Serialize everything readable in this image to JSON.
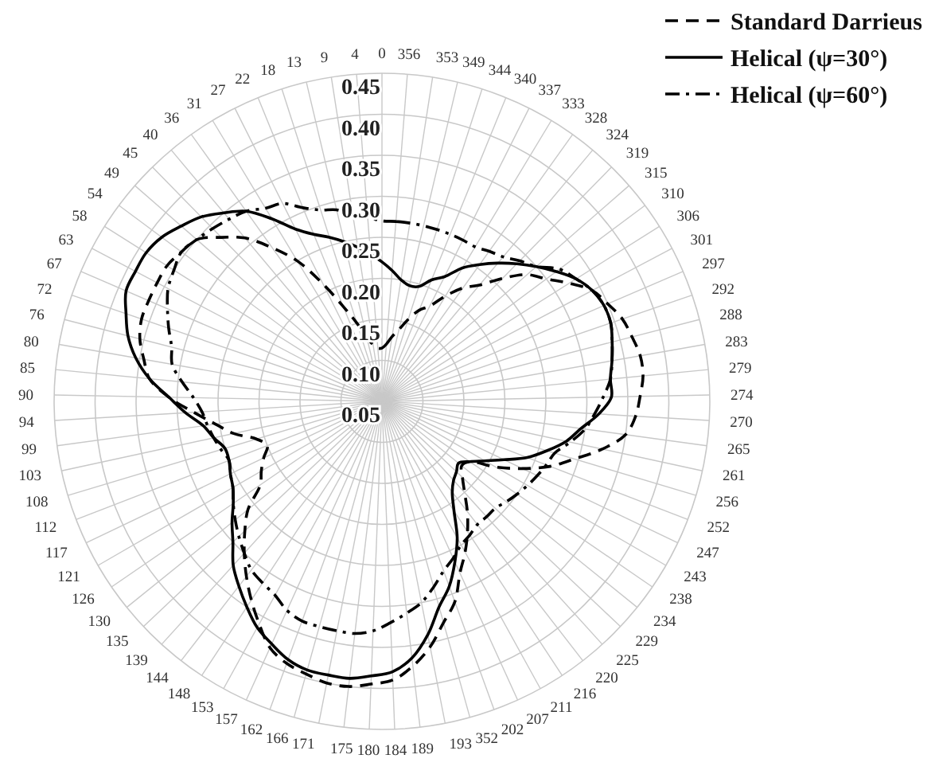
{
  "chart_data": {
    "type": "radar",
    "categories": [
      "0",
      "356",
      "353",
      "349",
      "344",
      "340",
      "337",
      "333",
      "328",
      "324",
      "319",
      "315",
      "310",
      "306",
      "301",
      "297",
      "292",
      "288",
      "283",
      "279",
      "274",
      "270",
      "265",
      "261",
      "256",
      "252",
      "247",
      "243",
      "238",
      "234",
      "229",
      "225",
      "220",
      "216",
      "211",
      "207",
      "202",
      "352",
      "193",
      "189",
      "184",
      "180",
      "175",
      "171",
      "166",
      "162",
      "157",
      "153",
      "148",
      "144",
      "139",
      "135",
      "130",
      "126",
      "121",
      "117",
      "112",
      "108",
      "103",
      "99",
      "94",
      "90",
      "85",
      "80",
      "76",
      "72",
      "67",
      "63",
      "58",
      "54",
      "49",
      "45",
      "40",
      "36",
      "31",
      "27",
      "22",
      "18",
      "13",
      "9",
      "4"
    ],
    "ylim": [
      0.05,
      0.45
    ],
    "yticks": [
      {
        "value": 0.05,
        "label": "0.05"
      },
      {
        "value": 0.1,
        "label": "0.10"
      },
      {
        "value": 0.15,
        "label": "0.15"
      },
      {
        "value": 0.2,
        "label": "0.20"
      },
      {
        "value": 0.25,
        "label": "0.25"
      },
      {
        "value": 0.3,
        "label": "0.30"
      },
      {
        "value": 0.35,
        "label": "0.35"
      },
      {
        "value": 0.4,
        "label": "0.40"
      },
      {
        "value": 0.45,
        "label": "0.45"
      }
    ],
    "grid": true,
    "legend": "top right",
    "series": [
      {
        "name": "Standard Darrieus",
        "color": "#000000",
        "line_style": "dashed",
        "values": [
          0.115,
          0.12,
          0.13,
          0.14,
          0.155,
          0.17,
          0.18,
          0.2,
          0.22,
          0.235,
          0.26,
          0.285,
          0.3,
          0.32,
          0.34,
          0.35,
          0.36,
          0.365,
          0.37,
          0.37,
          0.365,
          0.36,
          0.35,
          0.325,
          0.295,
          0.27,
          0.24,
          0.21,
          0.18,
          0.175,
          0.185,
          0.2,
          0.22,
          0.24,
          0.26,
          0.28,
          0.31,
          0.33,
          0.355,
          0.375,
          0.39,
          0.395,
          0.4,
          0.4,
          0.395,
          0.39,
          0.38,
          0.36,
          0.34,
          0.32,
          0.3,
          0.28,
          0.26,
          0.23,
          0.22,
          0.21,
          0.2,
          0.21,
          0.235,
          0.255,
          0.28,
          0.31,
          0.335,
          0.345,
          0.355,
          0.36,
          0.36,
          0.36,
          0.36,
          0.355,
          0.35,
          0.33,
          0.31,
          0.28,
          0.25,
          0.21,
          0.175,
          0.15,
          0.13,
          0.12,
          0.115
        ]
      },
      {
        "name": "Helical (ψ=30°)",
        "color": "#000000",
        "line_style": "solid",
        "values": [
          0.22,
          0.21,
          0.2,
          0.195,
          0.197,
          0.21,
          0.22,
          0.24,
          0.255,
          0.27,
          0.285,
          0.3,
          0.315,
          0.33,
          0.34,
          0.345,
          0.345,
          0.34,
          0.335,
          0.33,
          0.33,
          0.315,
          0.295,
          0.28,
          0.26,
          0.24,
          0.215,
          0.195,
          0.18,
          0.17,
          0.175,
          0.18,
          0.19,
          0.21,
          0.24,
          0.265,
          0.29,
          0.31,
          0.34,
          0.365,
          0.38,
          0.385,
          0.39,
          0.39,
          0.39,
          0.385,
          0.375,
          0.365,
          0.35,
          0.335,
          0.32,
          0.3,
          0.285,
          0.27,
          0.26,
          0.255,
          0.25,
          0.25,
          0.26,
          0.27,
          0.29,
          0.31,
          0.335,
          0.355,
          0.37,
          0.38,
          0.39,
          0.39,
          0.39,
          0.385,
          0.375,
          0.365,
          0.35,
          0.335,
          0.31,
          0.285,
          0.27,
          0.26,
          0.25,
          0.24,
          0.23
        ]
      },
      {
        "name": "Helical (ψ=60°)",
        "color": "#000000",
        "line_style": "dashdot",
        "values": [
          0.27,
          0.27,
          0.27,
          0.27,
          0.27,
          0.27,
          0.27,
          0.27,
          0.275,
          0.28,
          0.29,
          0.3,
          0.32,
          0.33,
          0.34,
          0.345,
          0.345,
          0.34,
          0.335,
          0.33,
          0.32,
          0.31,
          0.3,
          0.285,
          0.27,
          0.265,
          0.26,
          0.255,
          0.25,
          0.245,
          0.24,
          0.24,
          0.24,
          0.245,
          0.25,
          0.26,
          0.27,
          0.285,
          0.3,
          0.31,
          0.32,
          0.33,
          0.335,
          0.335,
          0.335,
          0.335,
          0.33,
          0.32,
          0.315,
          0.31,
          0.3,
          0.29,
          0.28,
          0.27,
          0.26,
          0.255,
          0.25,
          0.255,
          0.26,
          0.265,
          0.27,
          0.28,
          0.295,
          0.31,
          0.315,
          0.325,
          0.335,
          0.345,
          0.35,
          0.355,
          0.35,
          0.345,
          0.34,
          0.335,
          0.325,
          0.32,
          0.305,
          0.295,
          0.29,
          0.28,
          0.275
        ]
      }
    ]
  }
}
